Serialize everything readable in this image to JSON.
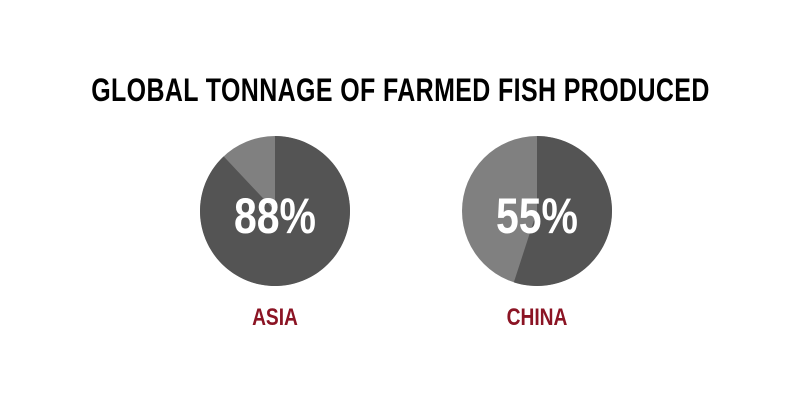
{
  "chart_data": {
    "type": "pie",
    "title": "GLOBAL TONNAGE OF FARMED FISH PRODUCED",
    "charts": [
      {
        "label": "ASIA",
        "value": 88,
        "value_label": "88%"
      },
      {
        "label": "CHINA",
        "value": 55,
        "value_label": "55%"
      }
    ],
    "colors": {
      "highlight": "#545454",
      "remainder": "#808080",
      "label": "#8b1424",
      "title": "#000000",
      "value_text": "#ffffff"
    }
  }
}
